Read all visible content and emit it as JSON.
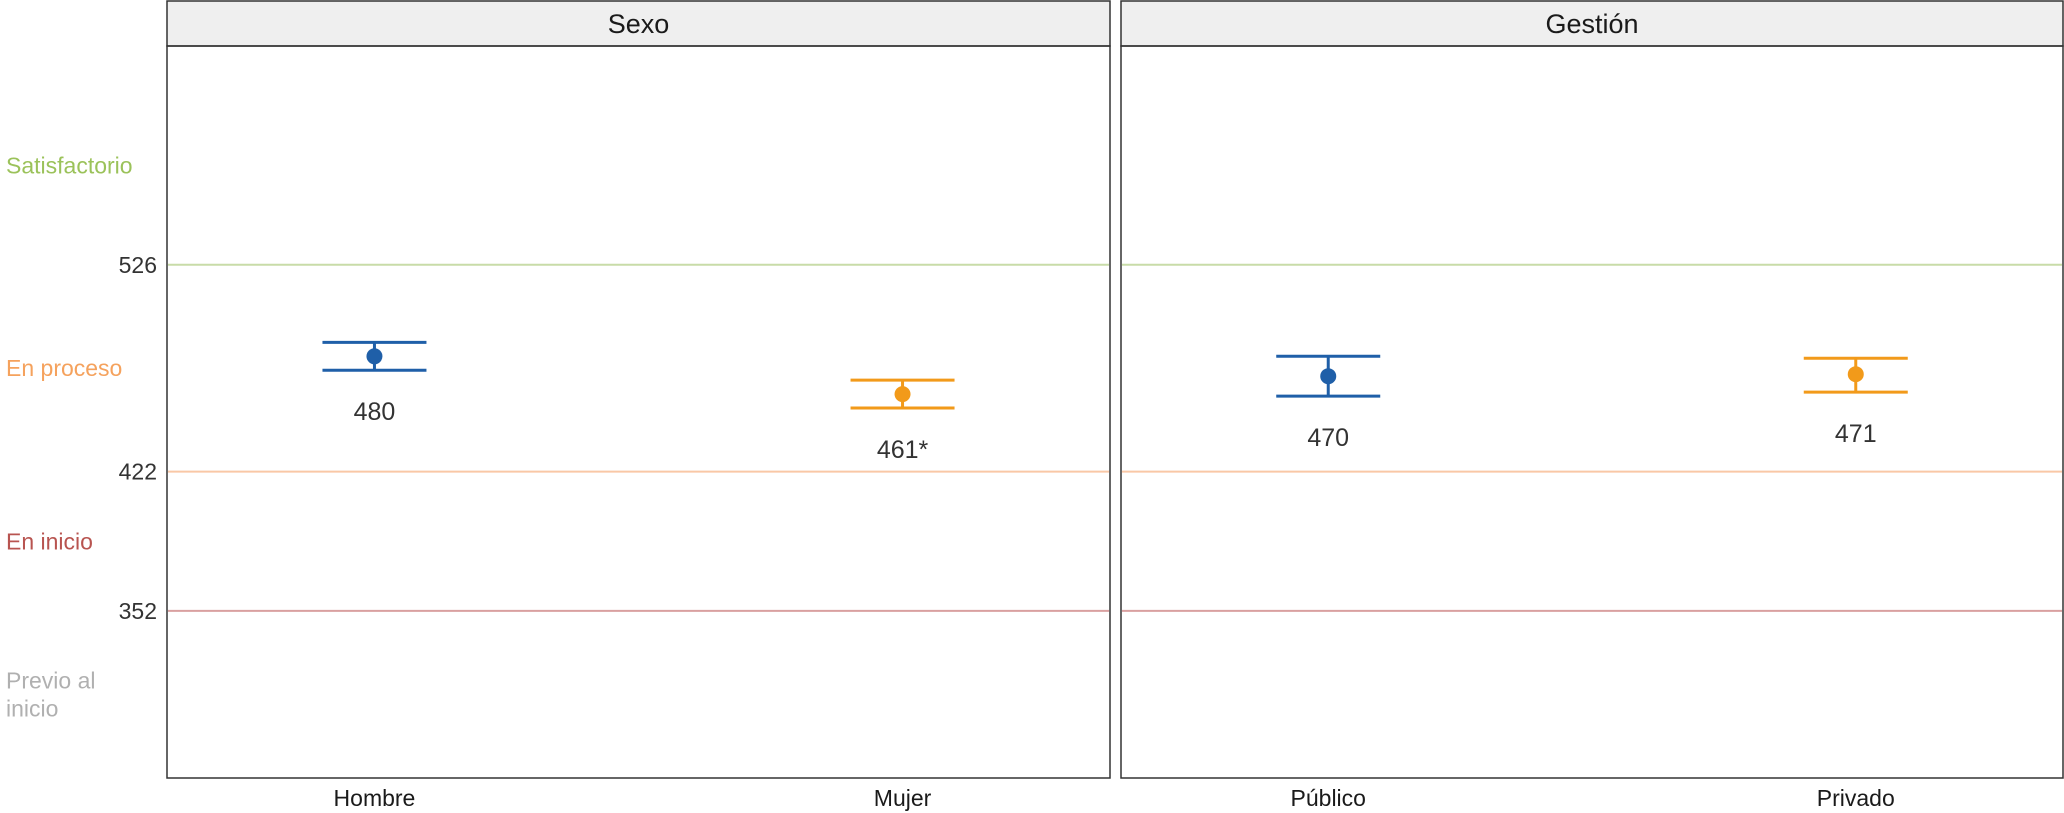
{
  "chart_data": {
    "type": "errorbar",
    "ylim": [
      268,
      636
    ],
    "thresholds": [
      {
        "value": 526,
        "label": "526",
        "color": "#c8dca8"
      },
      {
        "value": 422,
        "label": "422",
        "color": "#f9c8a6"
      },
      {
        "value": 352,
        "label": "352",
        "color": "#d9a0a0"
      }
    ],
    "levels": [
      {
        "label": "Satisfactorio",
        "color": "#9bc25a",
        "y_center": 576
      },
      {
        "label": "En proceso",
        "color": "#f5a25d",
        "y_center": 474
      },
      {
        "label": "En inicio",
        "color": "#b85450",
        "y_center": 387
      },
      {
        "label": "Previo al\ninicio",
        "color": "#b0b0b0",
        "y_center": 310
      }
    ],
    "panels": [
      {
        "title": "Sexo",
        "categories": [
          "Hombre",
          "Mujer"
        ],
        "points": [
          {
            "category": "Hombre",
            "value": 480,
            "lower": 473,
            "upper": 487,
            "label": "480",
            "color": "#1f5fa8"
          },
          {
            "category": "Mujer",
            "value": 461,
            "lower": 454,
            "upper": 468,
            "label": "461*",
            "color": "#f29a1a"
          }
        ]
      },
      {
        "title": "Gestión",
        "categories": [
          "Público",
          "Privado"
        ],
        "points": [
          {
            "category": "Público",
            "value": 470,
            "lower": 460,
            "upper": 480,
            "label": "470",
            "color": "#1f5fa8"
          },
          {
            "category": "Privado",
            "value": 471,
            "lower": 462,
            "upper": 479,
            "label": "471",
            "color": "#f29a1a"
          }
        ]
      }
    ]
  }
}
